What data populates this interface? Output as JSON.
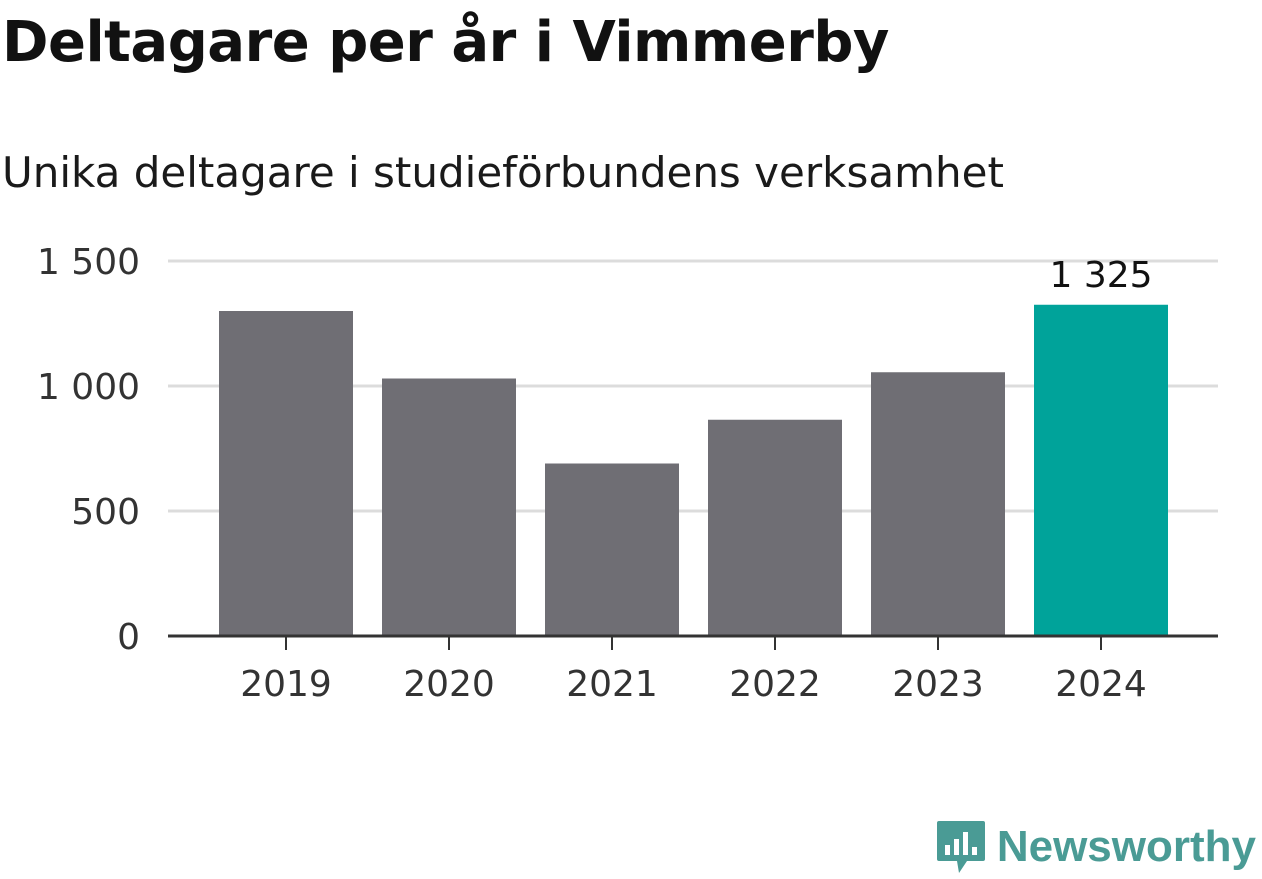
{
  "header": {
    "title": "Deltagare per år i Vimmerby",
    "subtitle": "Unika deltagare i studieförbundens verksamhet"
  },
  "brand": {
    "name": "Newsworthy",
    "icon": "newsworthy-logo-icon",
    "color": "#4a9b95"
  },
  "chart_data": {
    "type": "bar",
    "categories": [
      "2019",
      "2020",
      "2021",
      "2022",
      "2023",
      "2024"
    ],
    "values": [
      1300,
      1030,
      690,
      865,
      1055,
      1325
    ],
    "yticks": [
      0,
      500,
      1000,
      1500
    ],
    "ytick_labels": [
      "0",
      "500",
      "1 000",
      "1 500"
    ],
    "ylim": [
      0,
      1500
    ],
    "grid": true,
    "bar_color": "#6f6e74",
    "highlight_color": "#00a39a",
    "highlight_index": 5,
    "data_labels": [
      {
        "index": 5,
        "text": "1 325"
      }
    ]
  }
}
